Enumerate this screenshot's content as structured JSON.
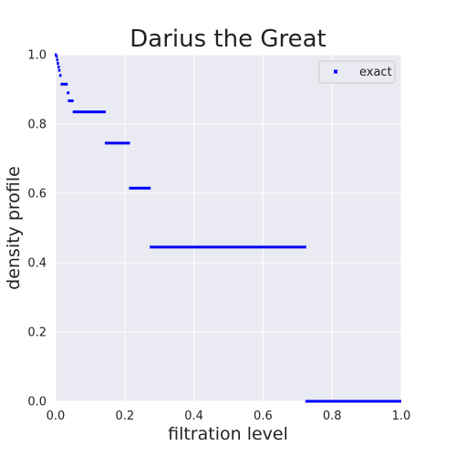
{
  "chart_data": {
    "type": "scatter",
    "title": "Darius the Great",
    "xlabel": "filtration level",
    "ylabel": "density profile",
    "xlim": [
      0,
      1
    ],
    "ylim": [
      0,
      1
    ],
    "xticks": [
      "0.0",
      "0.2",
      "0.4",
      "0.6",
      "0.8",
      "1.0"
    ],
    "yticks": [
      "0.0",
      "0.2",
      "0.4",
      "0.6",
      "0.8",
      "1.0"
    ],
    "grid": true,
    "legend_position": "top-right",
    "colors": {
      "background": "#eaeaf2",
      "grid": "#ffffff",
      "series": "#0000ff"
    },
    "series": [
      {
        "name": "exact",
        "marker": "square",
        "segments": [
          {
            "x0": 0.0,
            "x1": 0.002,
            "y": 1.0
          },
          {
            "x0": 0.002,
            "x1": 0.004,
            "y": 0.995
          },
          {
            "x0": 0.004,
            "x1": 0.006,
            "y": 0.985
          },
          {
            "x0": 0.006,
            "x1": 0.008,
            "y": 0.975
          },
          {
            "x0": 0.008,
            "x1": 0.01,
            "y": 0.965
          },
          {
            "x0": 0.01,
            "x1": 0.013,
            "y": 0.955
          },
          {
            "x0": 0.013,
            "x1": 0.017,
            "y": 0.94
          },
          {
            "x0": 0.017,
            "x1": 0.035,
            "y": 0.915
          },
          {
            "x0": 0.035,
            "x1": 0.04,
            "y": 0.89
          },
          {
            "x0": 0.038,
            "x1": 0.052,
            "y": 0.867
          },
          {
            "x0": 0.052,
            "x1": 0.145,
            "y": 0.835
          },
          {
            "x0": 0.145,
            "x1": 0.215,
            "y": 0.745
          },
          {
            "x0": 0.215,
            "x1": 0.275,
            "y": 0.615
          },
          {
            "x0": 0.275,
            "x1": 0.725,
            "y": 0.445
          },
          {
            "x0": 0.725,
            "x1": 1.0,
            "y": 0.0
          }
        ]
      }
    ]
  }
}
